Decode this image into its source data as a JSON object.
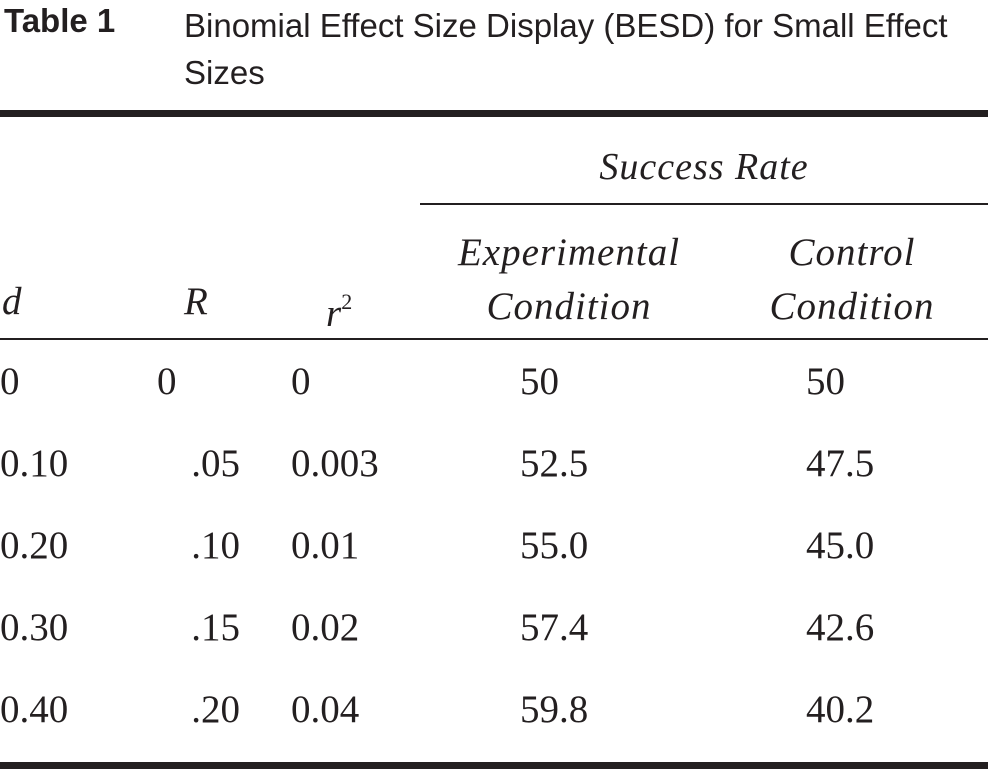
{
  "caption": {
    "label": "Table 1",
    "title": "Binomial Effect Size Display (BESD) for Small Effect Sizes"
  },
  "header": {
    "spanner": "Success Rate",
    "d": "d",
    "r": "R",
    "r2_base": "r",
    "r2_exp": "2",
    "experimental_line1": "Experimental",
    "experimental_line2": "Condition",
    "control_line1": "Control",
    "control_line2": "Condition"
  },
  "rows": [
    {
      "d": "0",
      "r": "0",
      "r2": "0",
      "experimental": "50",
      "control": "50"
    },
    {
      "d": "0.10",
      "r": ".05",
      "r2": "0.003",
      "experimental": "52.5",
      "control": "47.5"
    },
    {
      "d": "0.20",
      "r": ".10",
      "r2": "0.01",
      "experimental": "55.0",
      "control": "45.0"
    },
    {
      "d": "0.30",
      "r": ".15",
      "r2": "0.02",
      "experimental": "57.4",
      "control": "42.6"
    },
    {
      "d": "0.40",
      "r": ".20",
      "r2": "0.04",
      "experimental": "59.8",
      "control": "40.2"
    }
  ]
}
